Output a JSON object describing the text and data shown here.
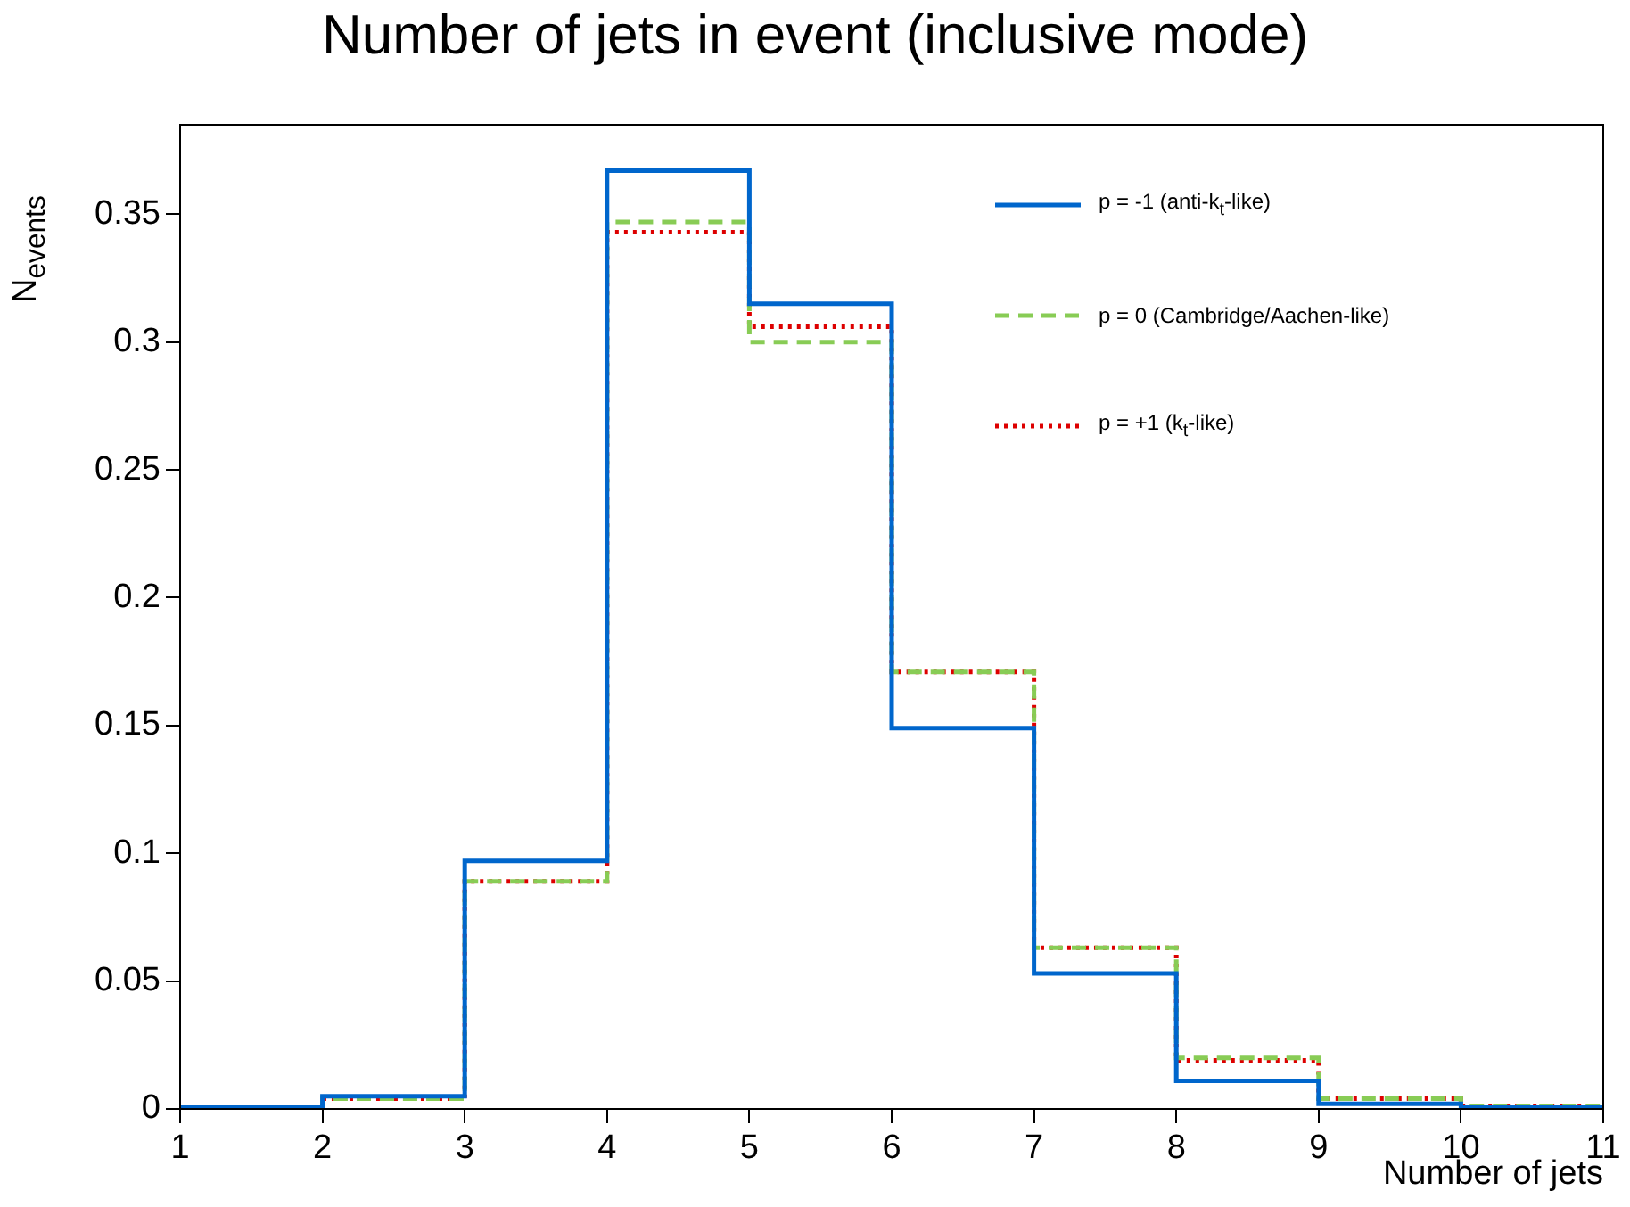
{
  "chart_data": {
    "type": "histogram",
    "title": "Number of jets in event (inclusive mode)",
    "xlabel": "Number of jets",
    "ylabel": "N$_{events}$",
    "bins": [
      1,
      2,
      3,
      4,
      5,
      6,
      7,
      8,
      9,
      10,
      11
    ],
    "series": [
      {
        "name": "p = -1  (anti-k$_{t}$-like)",
        "color": "#0066cc",
        "line_style": "solid",
        "values": [
          0.0005,
          0.005,
          0.097,
          0.367,
          0.315,
          0.149,
          0.053,
          0.011,
          0.002,
          0.0005
        ]
      },
      {
        "name": "p =  0  (Cambridge/Aachen-like)",
        "color": "#88cc55",
        "line_style": "dashed",
        "values": [
          0.0005,
          0.004,
          0.089,
          0.347,
          0.3,
          0.171,
          0.063,
          0.02,
          0.004,
          0.001
        ]
      },
      {
        "name": "p = +1  (k$_{t}$-like)",
        "color": "#dd0000",
        "line_style": "dotted",
        "values": [
          0.0005,
          0.004,
          0.089,
          0.343,
          0.306,
          0.171,
          0.063,
          0.019,
          0.004,
          0.001
        ]
      }
    ],
    "xlim": [
      1,
      11
    ],
    "xticks": [
      1,
      2,
      3,
      4,
      5,
      6,
      7,
      8,
      9,
      10,
      11
    ],
    "ylim": [
      0,
      0.385
    ],
    "yticks": [
      0,
      0.05,
      0.1,
      0.15,
      0.2,
      0.25,
      0.3,
      0.35
    ],
    "grid": false,
    "legend": "top right"
  }
}
